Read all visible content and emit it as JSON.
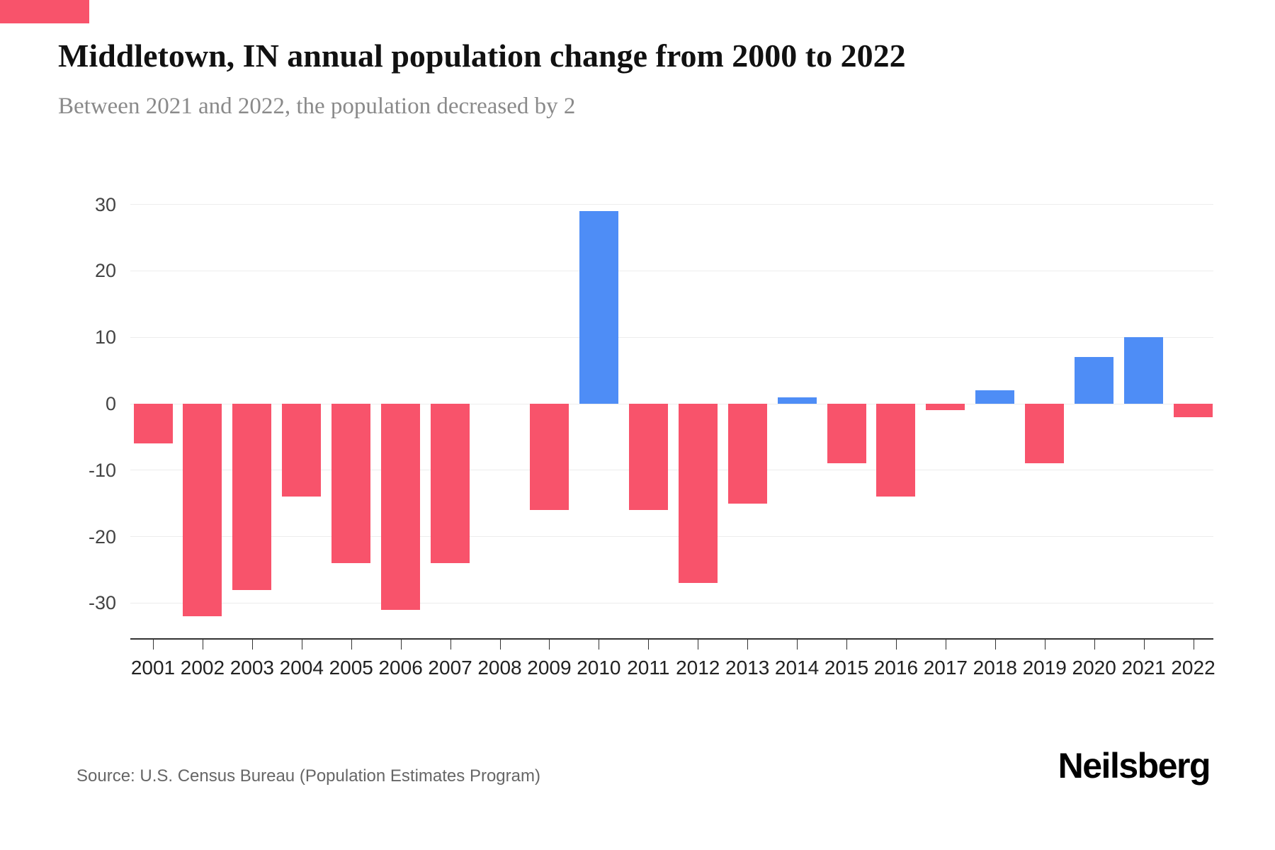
{
  "accent": {
    "top_bar_color": "#f8536b"
  },
  "header": {
    "title": "Middletown, IN annual population change from 2000 to 2022",
    "subtitle": "Between 2021 and 2022, the population decreased by 2"
  },
  "footer": {
    "source": "Source: U.S. Census Bureau (Population Estimates Program)",
    "brand": "Neilsberg"
  },
  "chart_data": {
    "type": "bar",
    "title": "Middletown, IN annual population change from 2000 to 2022",
    "subtitle": "Between 2021 and 2022, the population decreased by 2",
    "categories": [
      "2001",
      "2002",
      "2003",
      "2004",
      "2005",
      "2006",
      "2007",
      "2008",
      "2009",
      "2010",
      "2011",
      "2012",
      "2013",
      "2014",
      "2015",
      "2016",
      "2017",
      "2018",
      "2019",
      "2020",
      "2021",
      "2022"
    ],
    "values": [
      -6,
      -32,
      -28,
      -14,
      -24,
      -31,
      -24,
      0,
      -16,
      29,
      -16,
      -27,
      -15,
      1,
      -9,
      -14,
      -1,
      2,
      -9,
      7,
      10,
      -2
    ],
    "xlabel": "",
    "ylabel": "",
    "ylim": [
      -35.5,
      33
    ],
    "yticks": [
      30,
      20,
      10,
      0,
      -10,
      -20,
      -30
    ],
    "grid": true,
    "legend": "none",
    "positive_color": "#4e8df6",
    "negative_color": "#f8536b"
  }
}
